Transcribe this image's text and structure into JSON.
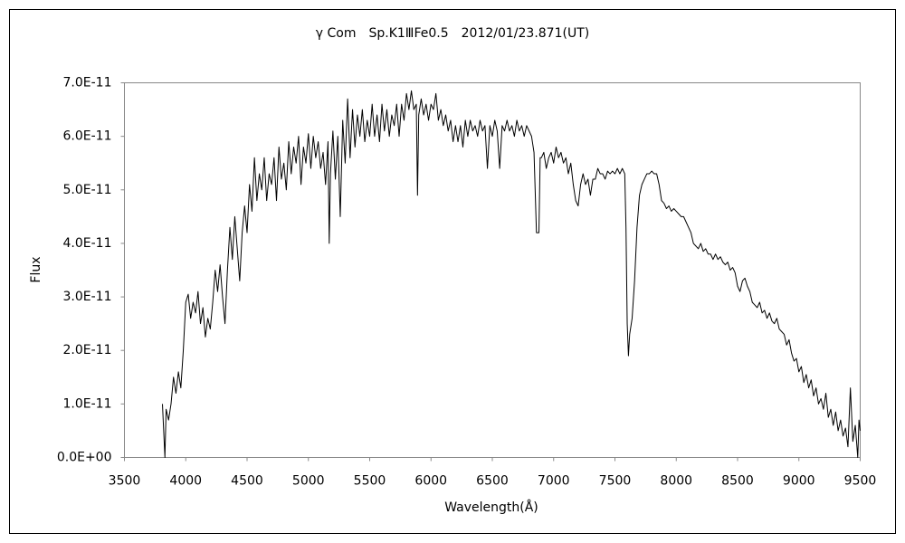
{
  "chart_data": {
    "type": "line",
    "title": "γ Com　Sp.K1ⅢFe0.5　2012/01/23.871(UT)",
    "x_label": "Wavelength(Å)",
    "y_label": "Flux",
    "color": "#000000",
    "grid": false,
    "xlim": [
      3500,
      9500
    ],
    "xticks": [
      3500,
      4000,
      4500,
      5000,
      5500,
      6000,
      6500,
      7000,
      7500,
      8000,
      8500,
      9000,
      9500
    ],
    "ylim": [
      0,
      7e-11
    ],
    "yticks": [
      {
        "value": 0,
        "label": "0.0E+00"
      },
      {
        "value": 1e-11,
        "label": "1.0E-11"
      },
      {
        "value": 2e-11,
        "label": "2.0E-11"
      },
      {
        "value": 3e-11,
        "label": "3.0E-11"
      },
      {
        "value": 4e-11,
        "label": "4.0E-11"
      },
      {
        "value": 5e-11,
        "label": "5.0E-11"
      },
      {
        "value": 6e-11,
        "label": "6.0E-11"
      },
      {
        "value": 7e-11,
        "label": "7.0E-11"
      }
    ],
    "x": [
      3810,
      3820,
      3830,
      3840,
      3860,
      3880,
      3900,
      3920,
      3940,
      3960,
      3980,
      4000,
      4020,
      4040,
      4060,
      4080,
      4100,
      4120,
      4140,
      4160,
      4180,
      4200,
      4220,
      4240,
      4260,
      4280,
      4300,
      4320,
      4340,
      4360,
      4380,
      4400,
      4420,
      4440,
      4460,
      4480,
      4500,
      4520,
      4540,
      4560,
      4580,
      4600,
      4620,
      4640,
      4660,
      4680,
      4700,
      4720,
      4740,
      4760,
      4780,
      4800,
      4820,
      4840,
      4860,
      4880,
      4900,
      4920,
      4940,
      4960,
      4980,
      5000,
      5020,
      5040,
      5060,
      5080,
      5100,
      5120,
      5140,
      5160,
      5170,
      5180,
      5200,
      5220,
      5240,
      5260,
      5280,
      5300,
      5320,
      5340,
      5360,
      5380,
      5400,
      5420,
      5440,
      5460,
      5480,
      5500,
      5520,
      5540,
      5560,
      5580,
      5600,
      5620,
      5640,
      5660,
      5680,
      5700,
      5720,
      5740,
      5760,
      5780,
      5800,
      5820,
      5840,
      5860,
      5880,
      5890,
      5900,
      5920,
      5940,
      5960,
      5980,
      6000,
      6020,
      6040,
      6060,
      6080,
      6100,
      6120,
      6140,
      6160,
      6180,
      6200,
      6220,
      6240,
      6260,
      6280,
      6300,
      6320,
      6340,
      6360,
      6380,
      6400,
      6420,
      6440,
      6460,
      6480,
      6500,
      6520,
      6540,
      6560,
      6580,
      6600,
      6620,
      6640,
      6660,
      6680,
      6700,
      6720,
      6740,
      6760,
      6780,
      6800,
      6820,
      6840,
      6860,
      6880,
      6890,
      6900,
      6920,
      6940,
      6960,
      6980,
      7000,
      7020,
      7040,
      7060,
      7080,
      7100,
      7120,
      7140,
      7160,
      7180,
      7200,
      7220,
      7240,
      7260,
      7280,
      7300,
      7320,
      7340,
      7360,
      7380,
      7400,
      7420,
      7440,
      7460,
      7480,
      7500,
      7520,
      7540,
      7560,
      7580,
      7590,
      7600,
      7610,
      7620,
      7640,
      7660,
      7680,
      7700,
      7720,
      7740,
      7760,
      7780,
      7800,
      7820,
      7840,
      7860,
      7880,
      7900,
      7920,
      7940,
      7960,
      7980,
      8000,
      8020,
      8040,
      8060,
      8080,
      8100,
      8120,
      8140,
      8160,
      8180,
      8200,
      8220,
      8240,
      8260,
      8280,
      8300,
      8320,
      8340,
      8360,
      8380,
      8400,
      8420,
      8440,
      8460,
      8480,
      8500,
      8520,
      8540,
      8560,
      8580,
      8600,
      8620,
      8640,
      8660,
      8680,
      8700,
      8720,
      8740,
      8760,
      8780,
      8800,
      8820,
      8840,
      8860,
      8880,
      8900,
      8920,
      8940,
      8960,
      8980,
      9000,
      9020,
      9040,
      9060,
      9080,
      9100,
      9120,
      9140,
      9160,
      9180,
      9200,
      9220,
      9240,
      9260,
      9280,
      9300,
      9320,
      9340,
      9360,
      9380,
      9400,
      9420,
      9440,
      9460,
      9480,
      9490,
      9500
    ],
    "values": [
      1e-11,
      5e-12,
      0.0,
      9e-12,
      7e-12,
      1e-11,
      1.5e-11,
      1.2e-11,
      1.6e-11,
      1.3e-11,
      2e-11,
      2.9e-11,
      3.05e-11,
      2.6e-11,
      2.9e-11,
      2.7e-11,
      3.1e-11,
      2.5e-11,
      2.8e-11,
      2.25e-11,
      2.6e-11,
      2.4e-11,
      2.9e-11,
      3.5e-11,
      3.1e-11,
      3.6e-11,
      3e-11,
      2.5e-11,
      3.5e-11,
      4.3e-11,
      3.7e-11,
      4.5e-11,
      3.9e-11,
      3.3e-11,
      4.2e-11,
      4.7e-11,
      4.2e-11,
      5.1e-11,
      4.6e-11,
      5.6e-11,
      4.8e-11,
      5.3e-11,
      5e-11,
      5.6e-11,
      4.8e-11,
      5.3e-11,
      5.1e-11,
      5.6e-11,
      4.8e-11,
      5.8e-11,
      5.2e-11,
      5.5e-11,
      5e-11,
      5.9e-11,
      5.3e-11,
      5.8e-11,
      5.5e-11,
      6e-11,
      5.1e-11,
      5.8e-11,
      5.5e-11,
      6.05e-11,
      5.4e-11,
      6e-11,
      5.6e-11,
      5.9e-11,
      5.4e-11,
      5.7e-11,
      5.1e-11,
      5.9e-11,
      4e-11,
      5.3e-11,
      6.1e-11,
      5.2e-11,
      6e-11,
      4.5e-11,
      6.3e-11,
      5.5e-11,
      6.7e-11,
      5.6e-11,
      6.5e-11,
      5.8e-11,
      6.4e-11,
      6e-11,
      6.5e-11,
      5.9e-11,
      6.3e-11,
      6e-11,
      6.6e-11,
      6e-11,
      6.4e-11,
      5.9e-11,
      6.6e-11,
      6.1e-11,
      6.5e-11,
      6e-11,
      6.4e-11,
      6.2e-11,
      6.6e-11,
      6e-11,
      6.6e-11,
      6.3e-11,
      6.8e-11,
      6.5e-11,
      6.85e-11,
      6.5e-11,
      6.6e-11,
      4.9e-11,
      6.4e-11,
      6.7e-11,
      6.4e-11,
      6.6e-11,
      6.3e-11,
      6.6e-11,
      6.5e-11,
      6.8e-11,
      6.3e-11,
      6.5e-11,
      6.2e-11,
      6.4e-11,
      6.1e-11,
      6.3e-11,
      5.9e-11,
      6.2e-11,
      5.9e-11,
      6.2e-11,
      5.8e-11,
      6.3e-11,
      6e-11,
      6.3e-11,
      6.1e-11,
      6.2e-11,
      6e-11,
      6.3e-11,
      6.1e-11,
      6.2e-11,
      5.4e-11,
      6.2e-11,
      6e-11,
      6.3e-11,
      6.1e-11,
      5.4e-11,
      6.2e-11,
      6.1e-11,
      6.3e-11,
      6.1e-11,
      6.2e-11,
      6e-11,
      6.3e-11,
      6.1e-11,
      6.2e-11,
      6e-11,
      6.2e-11,
      6.1e-11,
      6e-11,
      5.7e-11,
      4.2e-11,
      4.2e-11,
      5.6e-11,
      5.6e-11,
      5.7e-11,
      5.4e-11,
      5.6e-11,
      5.7e-11,
      5.5e-11,
      5.8e-11,
      5.6e-11,
      5.7e-11,
      5.5e-11,
      5.6e-11,
      5.3e-11,
      5.5e-11,
      5.1e-11,
      4.8e-11,
      4.7e-11,
      5.1e-11,
      5.3e-11,
      5.1e-11,
      5.2e-11,
      4.9e-11,
      5.2e-11,
      5.2e-11,
      5.4e-11,
      5.3e-11,
      5.3e-11,
      5.2e-11,
      5.35e-11,
      5.3e-11,
      5.35e-11,
      5.3e-11,
      5.4e-11,
      5.3e-11,
      5.4e-11,
      5.3e-11,
      4.3e-11,
      2.5e-11,
      1.9e-11,
      2.3e-11,
      2.6e-11,
      3.3e-11,
      4.3e-11,
      4.9e-11,
      5.1e-11,
      5.2e-11,
      5.3e-11,
      5.3e-11,
      5.35e-11,
      5.3e-11,
      5.3e-11,
      5.1e-11,
      4.8e-11,
      4.75e-11,
      4.65e-11,
      4.7e-11,
      4.6e-11,
      4.65e-11,
      4.6e-11,
      4.55e-11,
      4.5e-11,
      4.5e-11,
      4.4e-11,
      4.3e-11,
      4.2e-11,
      4e-11,
      3.95e-11,
      3.9e-11,
      4e-11,
      3.85e-11,
      3.9e-11,
      3.8e-11,
      3.8e-11,
      3.7e-11,
      3.8e-11,
      3.7e-11,
      3.75e-11,
      3.65e-11,
      3.6e-11,
      3.65e-11,
      3.5e-11,
      3.55e-11,
      3.45e-11,
      3.2e-11,
      3.1e-11,
      3.3e-11,
      3.35e-11,
      3.2e-11,
      3.1e-11,
      2.9e-11,
      2.85e-11,
      2.8e-11,
      2.9e-11,
      2.7e-11,
      2.75e-11,
      2.6e-11,
      2.7e-11,
      2.55e-11,
      2.5e-11,
      2.6e-11,
      2.4e-11,
      2.35e-11,
      2.3e-11,
      2.1e-11,
      2.2e-11,
      1.95e-11,
      1.8e-11,
      1.85e-11,
      1.6e-11,
      1.7e-11,
      1.4e-11,
      1.55e-11,
      1.3e-11,
      1.45e-11,
      1.15e-11,
      1.3e-11,
      1e-11,
      1.1e-11,
      9e-12,
      1.2e-11,
      7.5e-12,
      9e-12,
      6e-12,
      8.5e-12,
      5e-12,
      7e-12,
      4e-12,
      5.5e-12,
      2e-12,
      1.3e-11,
      3e-12,
      6e-12,
      0.0,
      7e-12,
      5e-12
    ]
  }
}
